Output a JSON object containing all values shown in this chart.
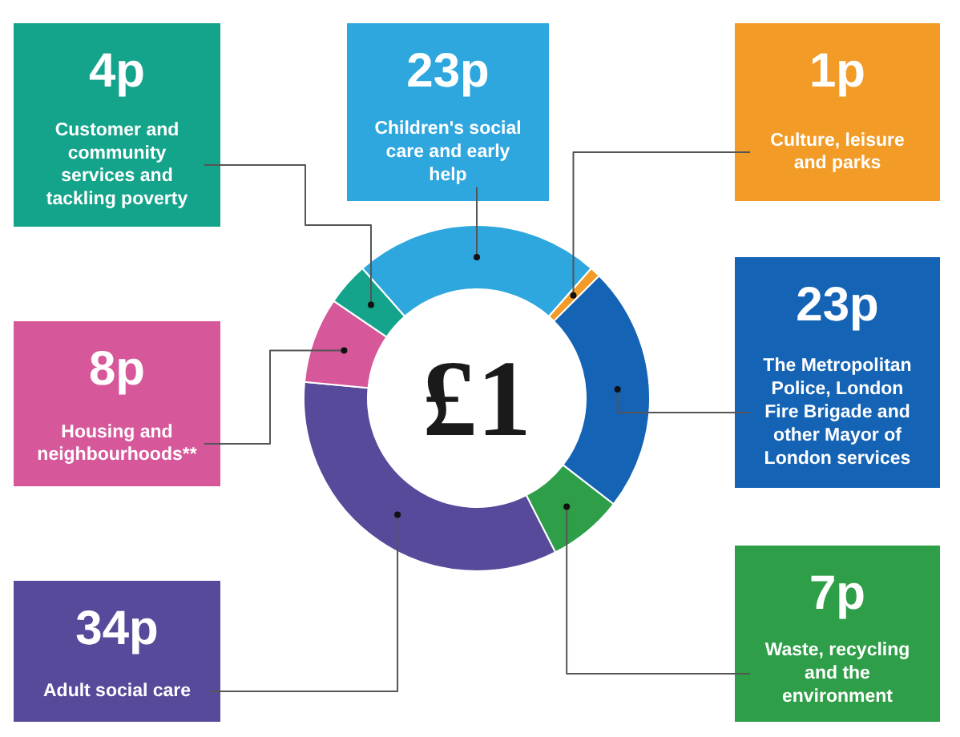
{
  "chart_data": {
    "type": "donut",
    "title": "£1",
    "categories": [
      "Children's social care and early help",
      "Culture, leisure and parks",
      "The Metropolitan Police, London Fire Brigade and other Mayor of London services",
      "Waste, recycling and the environment",
      "Adult social care",
      "Housing and neighbourhoods**",
      "Customer and community services and tackling poverty"
    ],
    "values": [
      23,
      1,
      23,
      7,
      34,
      8,
      4
    ],
    "colors": [
      "#2ea6de",
      "#f29b26",
      "#1463b5",
      "#2f9e48",
      "#574a9a",
      "#d6579a",
      "#14a38b"
    ],
    "value_labels": [
      "23p",
      "1p",
      "23p",
      "7p",
      "34p",
      "8p",
      "4p"
    ]
  }
}
